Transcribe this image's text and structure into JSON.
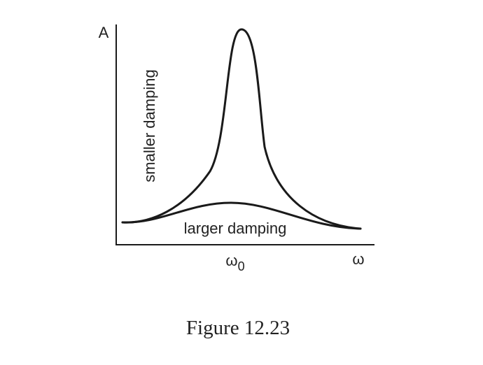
{
  "axes": {
    "y_label": "A",
    "x_label": "ω",
    "x_marker": "ω",
    "x_marker_subscript": "0"
  },
  "curves": [
    {
      "label": "smaller damping"
    },
    {
      "label": "larger damping"
    }
  ],
  "caption": "Figure 12.23"
}
